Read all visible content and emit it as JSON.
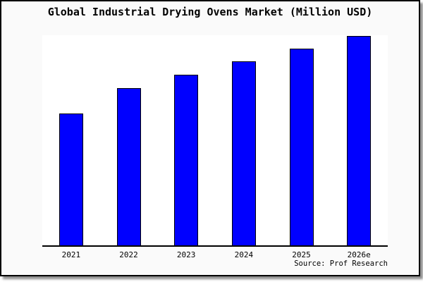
{
  "chart_data": {
    "type": "bar",
    "title": "Global Industrial Drying Ovens Market (Million USD)",
    "categories": [
      "2021",
      "2022",
      "2023",
      "2024",
      "2025",
      "2026e"
    ],
    "values": [
      188,
      225,
      244,
      263,
      281,
      299
    ],
    "values_note": "estimated relative heights; chart displays no y-axis tick labels",
    "xlabel": "",
    "ylabel": "",
    "ylim": [
      0,
      300
    ],
    "grid": false,
    "legend": false,
    "bar_color": "#0000ff",
    "bar_border_color": "#000000",
    "source_note": "Source: Prof Research"
  },
  "colors": {
    "background": "#fafafa",
    "plot_background": "#ffffff",
    "frame_border": "#000000",
    "shadow": "#8f8f8f",
    "text": "#000000"
  }
}
